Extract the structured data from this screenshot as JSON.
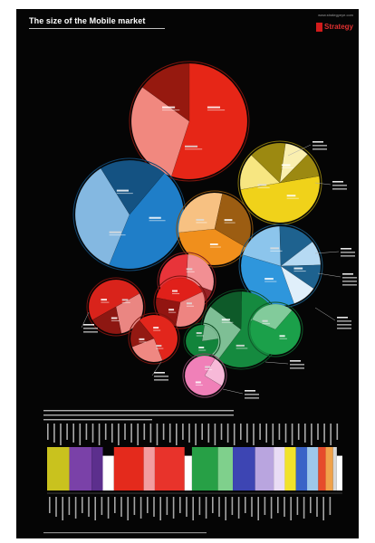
{
  "poster": {
    "title": "The size of the Mobile market",
    "brand": "Strategy",
    "brand_url": "www.strategyeye.com"
  },
  "chart_data": [
    {
      "type": "pie",
      "title": "",
      "note": "Packed pie/bubble clusters; segment labels are illegible at this resolution. Values are approximate shares read from slice angles.",
      "bubbles": [
        {
          "color": "#e62617",
          "slices": [
            0.55,
            0.3,
            0.15
          ],
          "label_pos": "large"
        },
        {
          "color": "#1f7ec8",
          "slices": [
            0.45,
            0.35,
            0.2
          ],
          "label_pos": "left"
        },
        {
          "color": "#f0d21a",
          "slices": [
            0.5,
            0.15,
            0.15,
            0.1,
            0.1
          ],
          "label_pos": "right"
        },
        {
          "color": "#f08f1c",
          "slices": [
            0.4,
            0.3,
            0.3
          ],
          "label_pos": "center"
        },
        {
          "color": "#2e96dc",
          "slices": [
            0.35,
            0.2,
            0.15,
            0.1,
            0.1,
            0.1
          ],
          "label_pos": "right"
        },
        {
          "color": "#e8343a",
          "slices": [
            0.45,
            0.3,
            0.25
          ],
          "label_pos": "center"
        },
        {
          "color": "#d9231b",
          "slices": [
            0.5,
            0.3,
            0.2
          ],
          "label_pos": "left"
        },
        {
          "color": "#e0201a",
          "slices": [
            0.4,
            0.35,
            0.25
          ],
          "label_pos": "center"
        },
        {
          "color": "#e2261c",
          "slices": [
            0.55,
            0.25,
            0.2
          ],
          "label_pos": "bottom"
        },
        {
          "color": "#158a3f",
          "slices": [
            0.6,
            0.25,
            0.15
          ],
          "label_pos": "center"
        },
        {
          "color": "#1ba04a",
          "slices": [
            0.7,
            0.3
          ],
          "label_pos": "right"
        },
        {
          "color": "#12843b",
          "slices": [
            0.8,
            0.2
          ],
          "label_pos": "left"
        },
        {
          "color": "#f080b8",
          "slices": [
            0.75,
            0.25
          ],
          "label_pos": "right"
        }
      ]
    },
    {
      "type": "bar",
      "title": "",
      "note": "Horizontal colour strip of countries/segments; value labels illegible. Widths are approximate relative shares.",
      "segments": [
        {
          "color": "#c9c21e",
          "value": 6
        },
        {
          "color": "#7a41a8",
          "value": 6
        },
        {
          "color": "#5c2f8d",
          "value": 3
        },
        {
          "color": "#ffffff",
          "value": 3
        },
        {
          "color": "#e42a1c",
          "value": 8
        },
        {
          "color": "#f29da0",
          "value": 3
        },
        {
          "color": "#e8332b",
          "value": 8
        },
        {
          "color": "#ffffff",
          "value": 2
        },
        {
          "color": "#27a046",
          "value": 7
        },
        {
          "color": "#7fd08c",
          "value": 4
        },
        {
          "color": "#3d45b3",
          "value": 6
        },
        {
          "color": "#b9a5df",
          "value": 5
        },
        {
          "color": "#e9dcf5",
          "value": 3
        },
        {
          "color": "#f1e22b",
          "value": 3
        },
        {
          "color": "#3a63c7",
          "value": 3
        },
        {
          "color": "#9ec7ea",
          "value": 3
        },
        {
          "color": "#e64b2b",
          "value": 2
        },
        {
          "color": "#f0a24a",
          "value": 2
        },
        {
          "color": "#d8d8d8",
          "value": 1
        },
        {
          "color": "#ffffff",
          "value": 1.5
        }
      ]
    }
  ]
}
